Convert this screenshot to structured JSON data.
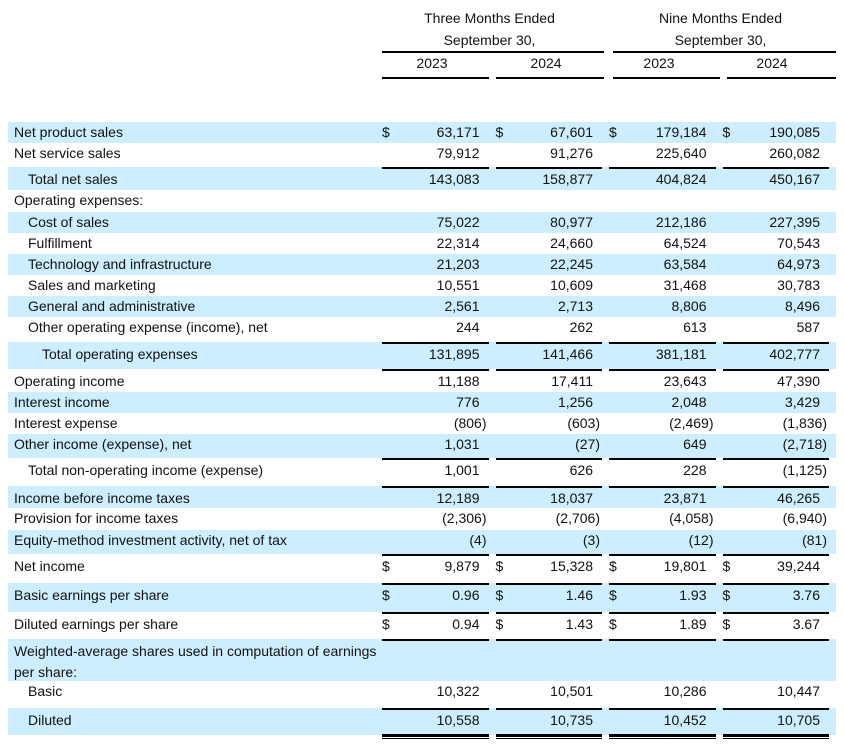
{
  "header": {
    "three_months": "Three Months Ended",
    "nine_months": "Nine Months Ended",
    "period_end_three": "September 30,",
    "period_end_nine": "September 30,",
    "years": [
      "2023",
      "2024",
      "2023",
      "2024"
    ]
  },
  "currency_symbol": "$",
  "rows": [
    {
      "label": "Net product sales",
      "values": [
        "63,171",
        "67,601",
        "179,184",
        "190,085"
      ],
      "dollar": true
    },
    {
      "label": "Net service sales",
      "values": [
        "79,912",
        "91,276",
        "225,640",
        "260,082"
      ]
    },
    {
      "label": "Total net sales",
      "values": [
        "143,083",
        "158,877",
        "404,824",
        "450,167"
      ]
    },
    {
      "label": "Operating expenses:",
      "values": [
        "",
        "",
        "",
        ""
      ]
    },
    {
      "label": "Cost of sales",
      "values": [
        "75,022",
        "80,977",
        "212,186",
        "227,395"
      ]
    },
    {
      "label": "Fulfillment",
      "values": [
        "22,314",
        "24,660",
        "64,524",
        "70,543"
      ]
    },
    {
      "label": "Technology and infrastructure",
      "values": [
        "21,203",
        "22,245",
        "63,584",
        "64,973"
      ]
    },
    {
      "label": "Sales and marketing",
      "values": [
        "10,551",
        "10,609",
        "31,468",
        "30,783"
      ]
    },
    {
      "label": "General and administrative",
      "values": [
        "2,561",
        "2,713",
        "8,806",
        "8,496"
      ]
    },
    {
      "label": "Other operating expense (income), net",
      "values": [
        "244",
        "262",
        "613",
        "587"
      ]
    },
    {
      "label": "Total operating expenses",
      "values": [
        "131,895",
        "141,466",
        "381,181",
        "402,777"
      ]
    },
    {
      "label": "Operating income",
      "values": [
        "11,188",
        "17,411",
        "23,643",
        "47,390"
      ]
    },
    {
      "label": "Interest income",
      "values": [
        "776",
        "1,256",
        "2,048",
        "3,429"
      ]
    },
    {
      "label": "Interest expense",
      "values": [
        "(806)",
        "(603)",
        "(2,469)",
        "(1,836)"
      ]
    },
    {
      "label": "Other income (expense), net",
      "values": [
        "1,031",
        "(27)",
        "649",
        "(2,718)"
      ]
    },
    {
      "label": "Total non-operating income (expense)",
      "values": [
        "1,001",
        "626",
        "228",
        "(1,125)"
      ]
    },
    {
      "label": "Income before income taxes",
      "values": [
        "12,189",
        "18,037",
        "23,871",
        "46,265"
      ]
    },
    {
      "label": "Provision for income taxes",
      "values": [
        "(2,306)",
        "(2,706)",
        "(4,058)",
        "(6,940)"
      ]
    },
    {
      "label": "Equity-method investment activity, net of tax",
      "values": [
        "(4)",
        "(3)",
        "(12)",
        "(81)"
      ]
    },
    {
      "label": "Net income",
      "values": [
        "9,879",
        "15,328",
        "19,801",
        "39,244"
      ],
      "dollar": true
    },
    {
      "label": "Basic earnings per share",
      "values": [
        "0.96",
        "1.46",
        "1.93",
        "3.76"
      ],
      "dollar": true
    },
    {
      "label": "Diluted earnings per share",
      "values": [
        "0.94",
        "1.43",
        "1.89",
        "3.67"
      ],
      "dollar": true
    },
    {
      "label": "Weighted-average shares used in computation of earnings per share:",
      "values": [
        "",
        "",
        "",
        ""
      ]
    },
    {
      "label": "Basic",
      "values": [
        "10,322",
        "10,501",
        "10,286",
        "10,447"
      ]
    },
    {
      "label": "Diluted",
      "values": [
        "10,558",
        "10,735",
        "10,452",
        "10,705"
      ]
    }
  ]
}
